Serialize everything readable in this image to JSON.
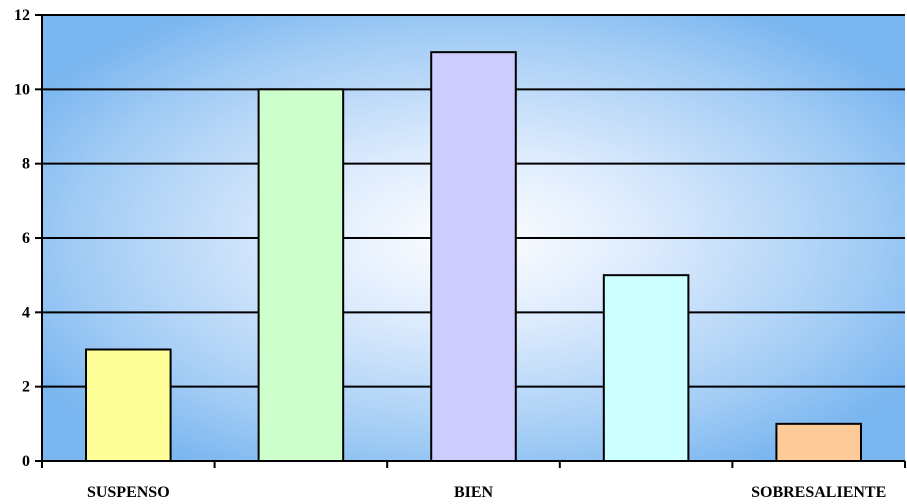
{
  "chart_data": {
    "type": "bar",
    "categories": [
      "SUSPENSO",
      "",
      "BIEN",
      "",
      "SOBRESALIENTE"
    ],
    "values": [
      3,
      10,
      11,
      5,
      1
    ],
    "bar_colors": [
      "#ffff99",
      "#ccffcc",
      "#ccccff",
      "#ccffff",
      "#ffcc99"
    ],
    "y_ticks": [
      "0",
      "2",
      "4",
      "6",
      "8",
      "10",
      "12"
    ],
    "ylim": [
      0,
      12
    ],
    "title": "",
    "xlabel": "",
    "ylabel": "",
    "grid": true,
    "legend": false
  },
  "colors": {
    "plot_edge": "#66a8ec",
    "plot_center": "#ffffff",
    "gridline": "#000000",
    "bar_stroke": "#000000"
  }
}
